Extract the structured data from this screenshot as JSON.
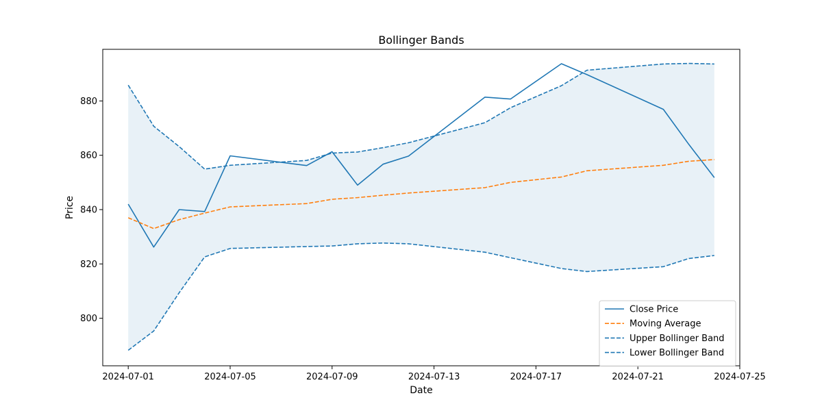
{
  "chart_data": {
    "type": "line",
    "title": "Bollinger Bands",
    "xlabel": "Date",
    "ylabel": "Price",
    "x_ticks": [
      "2024-07-01",
      "2024-07-05",
      "2024-07-09",
      "2024-07-13",
      "2024-07-17",
      "2024-07-21",
      "2024-07-25"
    ],
    "y_ticks": [
      800,
      820,
      840,
      860,
      880
    ],
    "xlim": [
      "2024-06-30",
      "2024-07-25"
    ],
    "ylim": [
      782.5,
      899.0
    ],
    "grid": false,
    "legend_position": "lower-right",
    "band_fill_color": "#1f77b4",
    "series": [
      {
        "name": "Close Price",
        "style": "solid",
        "color": "#1f77b4",
        "points": [
          [
            "2024-07-01",
            842.0
          ],
          [
            "2024-07-02",
            826.2
          ],
          [
            "2024-07-03",
            840.0
          ],
          [
            "2024-07-04",
            839.3
          ],
          [
            "2024-07-05",
            859.8
          ],
          [
            "2024-07-08",
            856.2
          ],
          [
            "2024-07-09",
            861.3
          ],
          [
            "2024-07-10",
            849.0
          ],
          [
            "2024-07-11",
            856.7
          ],
          [
            "2024-07-12",
            859.7
          ],
          [
            "2024-07-15",
            881.4
          ],
          [
            "2024-07-16",
            880.7
          ],
          [
            "2024-07-18",
            893.7
          ],
          [
            "2024-07-19",
            889.7
          ],
          [
            "2024-07-22",
            876.9
          ],
          [
            "2024-07-23",
            864.0
          ],
          [
            "2024-07-24",
            851.8
          ]
        ]
      },
      {
        "name": "Moving Average",
        "style": "dashed",
        "color": "#ff7f0e",
        "points": [
          [
            "2024-07-01",
            837.0
          ],
          [
            "2024-07-02",
            833.0
          ],
          [
            "2024-07-03",
            836.3
          ],
          [
            "2024-07-04",
            838.7
          ],
          [
            "2024-07-05",
            841.0
          ],
          [
            "2024-07-08",
            842.2
          ],
          [
            "2024-07-09",
            843.8
          ],
          [
            "2024-07-10",
            844.4
          ],
          [
            "2024-07-11",
            845.3
          ],
          [
            "2024-07-12",
            846.1
          ],
          [
            "2024-07-15",
            848.1
          ],
          [
            "2024-07-16",
            850.0
          ],
          [
            "2024-07-18",
            852.0
          ],
          [
            "2024-07-19",
            854.3
          ],
          [
            "2024-07-22",
            856.3
          ],
          [
            "2024-07-23",
            857.8
          ],
          [
            "2024-07-24",
            858.4
          ]
        ]
      },
      {
        "name": "Upper Bollinger Band",
        "style": "dashed",
        "color": "#1f77b4",
        "points": [
          [
            "2024-07-01",
            885.8
          ],
          [
            "2024-07-02",
            870.7
          ],
          [
            "2024-07-03",
            863.2
          ],
          [
            "2024-07-04",
            854.9
          ],
          [
            "2024-07-05",
            856.3
          ],
          [
            "2024-07-08",
            858.1
          ],
          [
            "2024-07-09",
            860.8
          ],
          [
            "2024-07-10",
            861.2
          ],
          [
            "2024-07-11",
            862.8
          ],
          [
            "2024-07-12",
            864.6
          ],
          [
            "2024-07-15",
            872.0
          ],
          [
            "2024-07-16",
            877.5
          ],
          [
            "2024-07-18",
            885.6
          ],
          [
            "2024-07-19",
            891.3
          ],
          [
            "2024-07-22",
            893.6
          ],
          [
            "2024-07-23",
            893.8
          ],
          [
            "2024-07-24",
            893.6
          ]
        ]
      },
      {
        "name": "Lower Bollinger Band",
        "style": "dashed",
        "color": "#1f77b4",
        "points": [
          [
            "2024-07-01",
            788.2
          ],
          [
            "2024-07-02",
            795.3
          ],
          [
            "2024-07-03",
            809.4
          ],
          [
            "2024-07-04",
            822.6
          ],
          [
            "2024-07-05",
            825.7
          ],
          [
            "2024-07-08",
            826.4
          ],
          [
            "2024-07-09",
            826.6
          ],
          [
            "2024-07-10",
            827.4
          ],
          [
            "2024-07-11",
            827.7
          ],
          [
            "2024-07-12",
            827.4
          ],
          [
            "2024-07-15",
            824.3
          ],
          [
            "2024-07-16",
            822.3
          ],
          [
            "2024-07-18",
            818.3
          ],
          [
            "2024-07-19",
            817.2
          ],
          [
            "2024-07-22",
            819.0
          ],
          [
            "2024-07-23",
            822.0
          ],
          [
            "2024-07-24",
            823.1
          ]
        ]
      }
    ]
  }
}
